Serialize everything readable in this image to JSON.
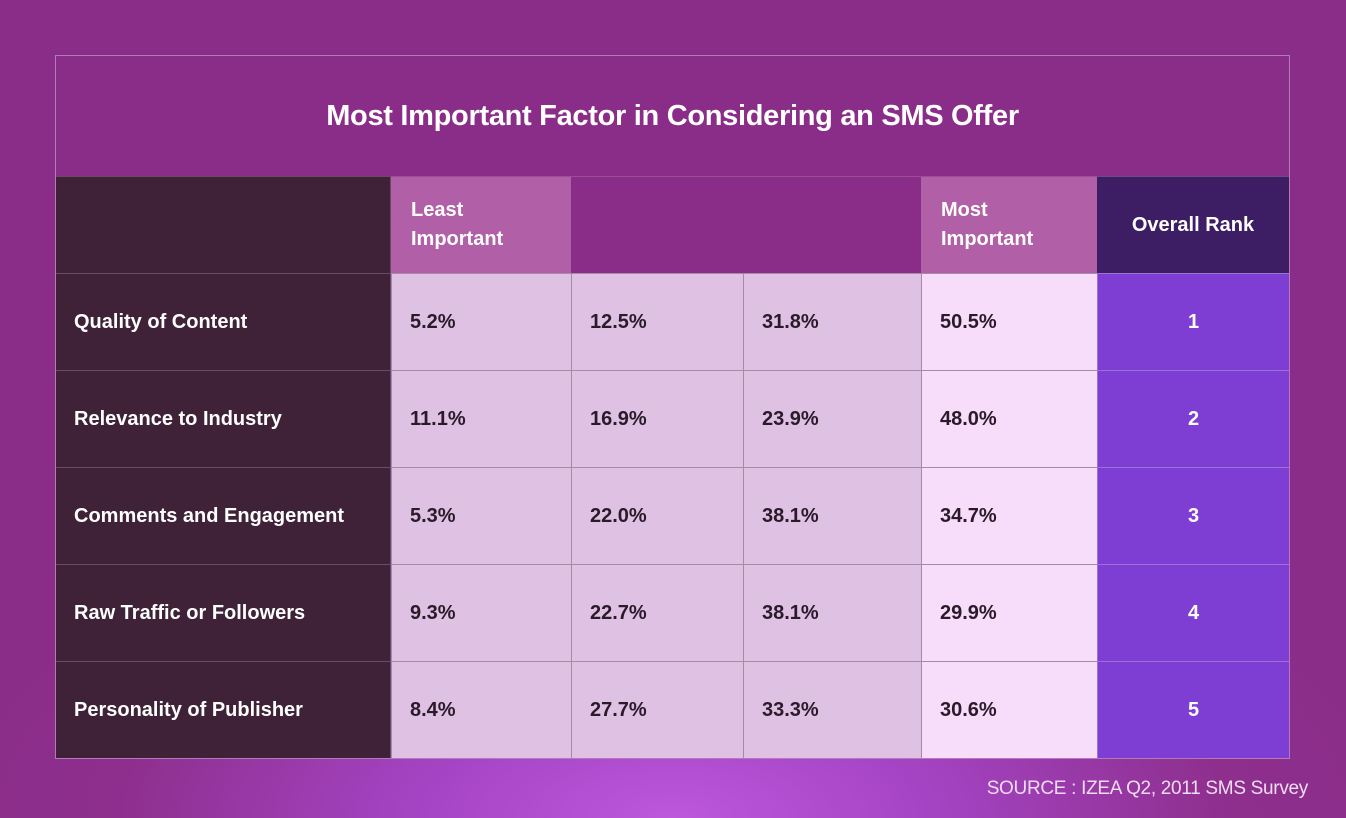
{
  "chart_data": {
    "type": "table",
    "title": "Most Important Factor in Considering an SMS Offer",
    "columns": [
      "",
      "Least\nImportant",
      "",
      "",
      "Most\nImportant",
      "Overall Rank"
    ],
    "rows": [
      {
        "label": "Quality of Content",
        "values": [
          "5.2%",
          "12.5%",
          "31.8%",
          "50.5%"
        ],
        "rank": "1"
      },
      {
        "label": "Relevance to Industry",
        "values": [
          "11.1%",
          "16.9%",
          "23.9%",
          "48.0%"
        ],
        "rank": "2"
      },
      {
        "label": "Comments and Engagement",
        "values": [
          "5.3%",
          "22.0%",
          "38.1%",
          "34.7%"
        ],
        "rank": "3"
      },
      {
        "label": "Raw Traffic or Followers",
        "values": [
          "9.3%",
          "22.7%",
          "38.1%",
          "29.9%"
        ],
        "rank": "4"
      },
      {
        "label": "Personality of Publisher",
        "values": [
          "8.4%",
          "27.7%",
          "33.3%",
          "30.6%"
        ],
        "rank": "5"
      }
    ],
    "source": "SOURCE : IZEA Q2, 2011 SMS Survey"
  },
  "colors": {
    "background": "#8a2d88",
    "label_column": "#3f2238",
    "value_cells": "#dfc2e3",
    "most_important_cells": "#f7ddf9",
    "rank_cells": "#7e3ed3",
    "rank_header": "#3d1d63",
    "importance_headers": "#b15fa7"
  }
}
